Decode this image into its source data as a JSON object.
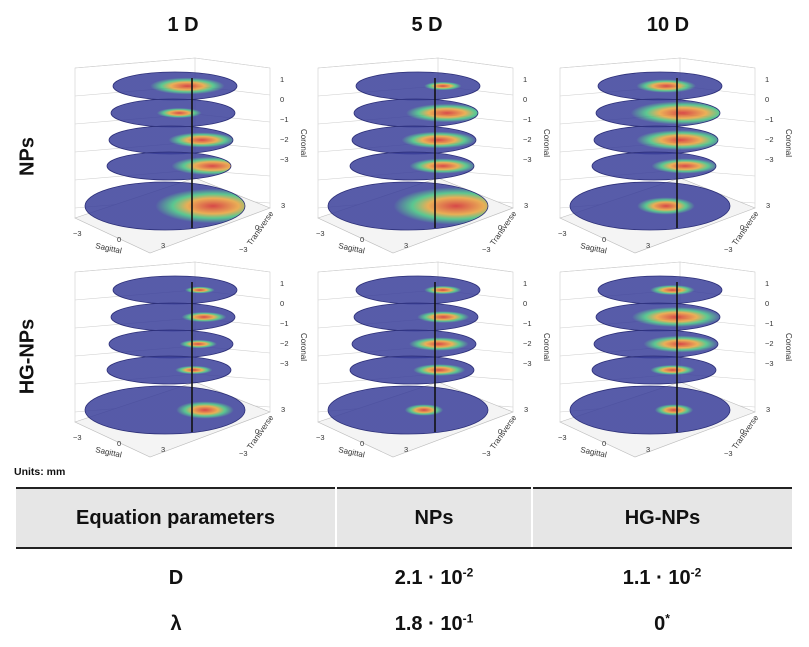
{
  "column_titles": [
    "1 D",
    "5 D",
    "10 D"
  ],
  "row_labels": [
    "NPs",
    "HG-NPs"
  ],
  "axis_labels": {
    "sagittal": "Sagittal",
    "transverse": "Transverse",
    "coronal": "Coronal"
  },
  "sagittal_ticks": [
    "−3",
    "0",
    "3"
  ],
  "transverse_ticks": [
    "3",
    "0",
    "−3"
  ],
  "coronal_ticks": [
    "1",
    "0",
    "−1",
    "−2",
    "−3"
  ],
  "colormap": {
    "low": "#3a3f9a",
    "mid": "#3fbf7f",
    "high": "#d12a2a"
  },
  "units_note": "Units: mm",
  "table": {
    "headers": [
      "Equation parameters",
      "NPs",
      "HG-NPs"
    ],
    "rows": [
      {
        "param": "D",
        "nps_base": "2.1 · 10",
        "nps_exp": "-2",
        "hg_base": "1.1 · 10",
        "hg_exp": "-2"
      },
      {
        "param": "λ",
        "nps_base": "1.8 · 10",
        "nps_exp": "-1",
        "hg_base": "0",
        "hg_exp": "*"
      }
    ]
  }
}
